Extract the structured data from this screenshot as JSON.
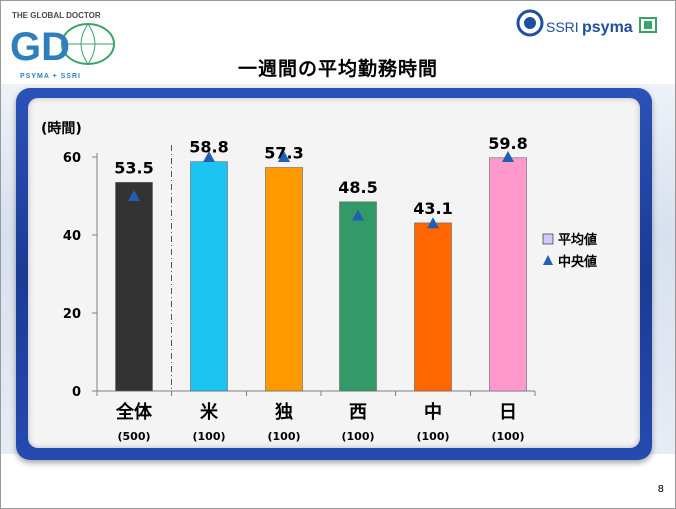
{
  "header": {
    "logo_left_tagline": "THE GLOBAL DOCTOR",
    "logo_left_mark": "GD",
    "logo_left_sub": "PSYMA + SSRI",
    "logo_right_ssri": "SSRI",
    "logo_right_psyma": "psyma",
    "title": "一週間の平均勤務時間"
  },
  "colors": {
    "panel_frame": "#1f43a6",
    "median_marker": "#1f5fb5"
  },
  "chart_data": {
    "type": "bar",
    "ylabel": "(時間)",
    "ylim": [
      0,
      60
    ],
    "yticks": [
      0,
      20,
      40,
      60
    ],
    "grid": false,
    "legend_position": "right",
    "categories": [
      "全体",
      "米",
      "独",
      "西",
      "中",
      "日"
    ],
    "sample_sizes": [
      "(500)",
      "(100)",
      "(100)",
      "(100)",
      "(100)",
      "(100)"
    ],
    "bar_colors": [
      "#333333",
      "#1cc4f2",
      "#ff9900",
      "#339966",
      "#ff6600",
      "#ff99cc"
    ],
    "series": [
      {
        "name": "平均値",
        "type": "bar",
        "values": [
          53.5,
          58.8,
          57.3,
          48.5,
          43.1,
          59.8
        ]
      },
      {
        "name": "中央値",
        "type": "marker",
        "values": [
          50,
          60,
          60,
          45,
          43,
          60
        ]
      }
    ],
    "data_labels": [
      "53.5",
      "58.8",
      "57.3",
      "48.5",
      "43.1",
      "59.8"
    ],
    "separator_after_index": 0
  },
  "footer": {
    "page_number": "8"
  }
}
